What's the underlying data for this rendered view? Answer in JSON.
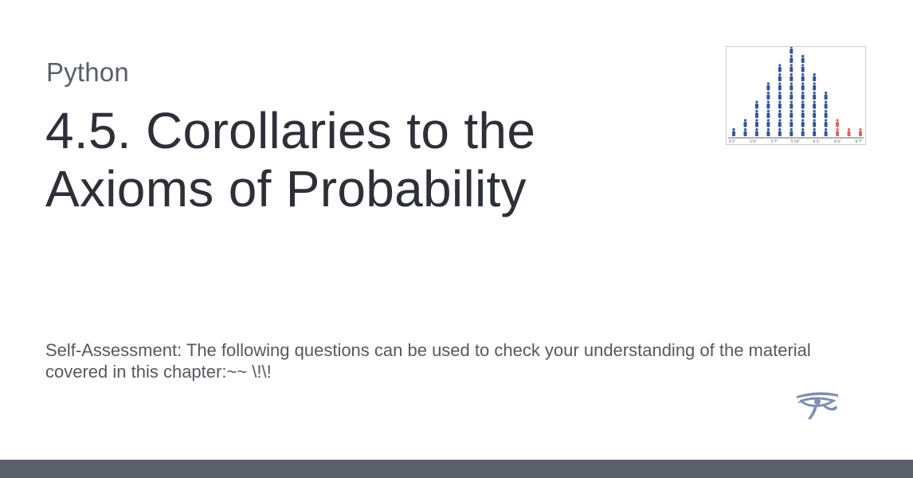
{
  "category": "Python",
  "title": "4.5. Corollaries to the Axioms of Probability",
  "description": "Self-Assessment: The following questions can be used to check your understanding of the material covered in this chapter:~~ \\!\\!",
  "thumbnail": {
    "tick_labels": [
      "5'1\"",
      "5'4\"",
      "5'7\"",
      "5'10\"",
      "6'1\"",
      "6'4\"",
      "6'7\""
    ],
    "column_counts": [
      1,
      2,
      4,
      6,
      8,
      10,
      9,
      7,
      5,
      2,
      1,
      1
    ],
    "highlight_from_index": 9,
    "colors": {
      "primary": "#34559a",
      "highlight": "#e0615a"
    }
  },
  "colors": {
    "title": "#2d3037",
    "category": "#595e68",
    "footer": "#5c606a",
    "logo": "#7e8fb3"
  }
}
